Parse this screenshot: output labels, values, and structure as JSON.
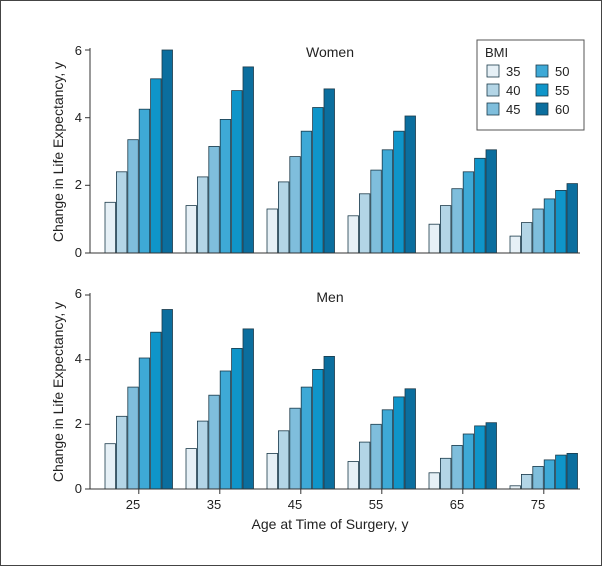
{
  "chart_data": [
    {
      "type": "bar",
      "title": "Women",
      "ylabel": "Change in Life Expectancy, y",
      "xlabel": "",
      "ylim": [
        0,
        6
      ],
      "yticks": [
        "0",
        "2",
        "4",
        "6"
      ],
      "categories": [
        "25",
        "35",
        "45",
        "55",
        "65",
        "75"
      ],
      "legend_title": "BMI",
      "legend_position": "top-right",
      "series": [
        {
          "name": "35",
          "color": "#e6f0f6",
          "values": [
            1.5,
            1.4,
            1.3,
            1.1,
            0.85,
            0.5
          ]
        },
        {
          "name": "40",
          "color": "#b3d5e6",
          "values": [
            2.4,
            2.25,
            2.1,
            1.75,
            1.4,
            0.9
          ]
        },
        {
          "name": "45",
          "color": "#7fbedc",
          "values": [
            3.35,
            3.15,
            2.85,
            2.45,
            1.9,
            1.3
          ]
        },
        {
          "name": "50",
          "color": "#3ea9d6",
          "values": [
            4.25,
            3.95,
            3.6,
            3.05,
            2.4,
            1.6
          ]
        },
        {
          "name": "55",
          "color": "#0f95c9",
          "values": [
            5.15,
            4.8,
            4.3,
            3.6,
            2.8,
            1.85
          ]
        },
        {
          "name": "60",
          "color": "#0b6e9e",
          "values": [
            6.0,
            5.5,
            4.85,
            4.05,
            3.05,
            2.05
          ]
        }
      ]
    },
    {
      "type": "bar",
      "title": "Men",
      "ylabel": "Change in Life Expectancy, y",
      "xlabel": "Age at Time of Surgery, y",
      "ylim": [
        0,
        6
      ],
      "yticks": [
        "0",
        "2",
        "4",
        "6"
      ],
      "categories": [
        "25",
        "35",
        "45",
        "55",
        "65",
        "75"
      ],
      "series": [
        {
          "name": "35",
          "color": "#e6f0f6",
          "values": [
            1.4,
            1.25,
            1.1,
            0.85,
            0.5,
            0.1
          ]
        },
        {
          "name": "40",
          "color": "#b3d5e6",
          "values": [
            2.25,
            2.1,
            1.8,
            1.45,
            0.95,
            0.45
          ]
        },
        {
          "name": "45",
          "color": "#7fbedc",
          "values": [
            3.15,
            2.9,
            2.5,
            2.0,
            1.35,
            0.7
          ]
        },
        {
          "name": "50",
          "color": "#3ea9d6",
          "values": [
            4.05,
            3.65,
            3.15,
            2.45,
            1.7,
            0.9
          ]
        },
        {
          "name": "55",
          "color": "#0f95c9",
          "values": [
            4.85,
            4.35,
            3.7,
            2.85,
            1.95,
            1.05
          ]
        },
        {
          "name": "60",
          "color": "#0b6e9e",
          "values": [
            5.55,
            4.95,
            4.1,
            3.1,
            2.05,
            1.1
          ]
        }
      ]
    }
  ]
}
